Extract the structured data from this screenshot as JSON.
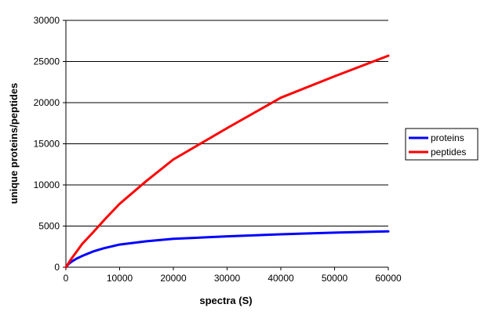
{
  "chart_data": {
    "type": "line",
    "title": "",
    "xlabel": "spectra (S)",
    "ylabel": "unique proteins/peptides",
    "xlim": [
      0,
      60000
    ],
    "ylim": [
      0,
      30000
    ],
    "xticks": [
      0,
      10000,
      20000,
      30000,
      40000,
      50000,
      60000
    ],
    "yticks": [
      0,
      5000,
      10000,
      15000,
      20000,
      25000,
      30000
    ],
    "grid": "horizontal",
    "legend": "right",
    "series": [
      {
        "name": "proteins",
        "color": "#0000ff",
        "x": [
          0,
          500,
          1000,
          2000,
          3000,
          5000,
          7000,
          10000,
          15000,
          20000,
          30000,
          40000,
          50000,
          60000
        ],
        "values": [
          0,
          380,
          650,
          1050,
          1350,
          1900,
          2300,
          2750,
          3150,
          3450,
          3750,
          4000,
          4200,
          4350
        ]
      },
      {
        "name": "peptides",
        "color": "#ff0000",
        "x": [
          0,
          1000,
          2000,
          3000,
          5000,
          7500,
          10000,
          15000,
          20000,
          30000,
          40000,
          50000,
          60000
        ],
        "values": [
          0,
          1000,
          1900,
          2800,
          4200,
          6000,
          7700,
          10500,
          13100,
          16900,
          20600,
          23200,
          25700
        ]
      }
    ]
  }
}
